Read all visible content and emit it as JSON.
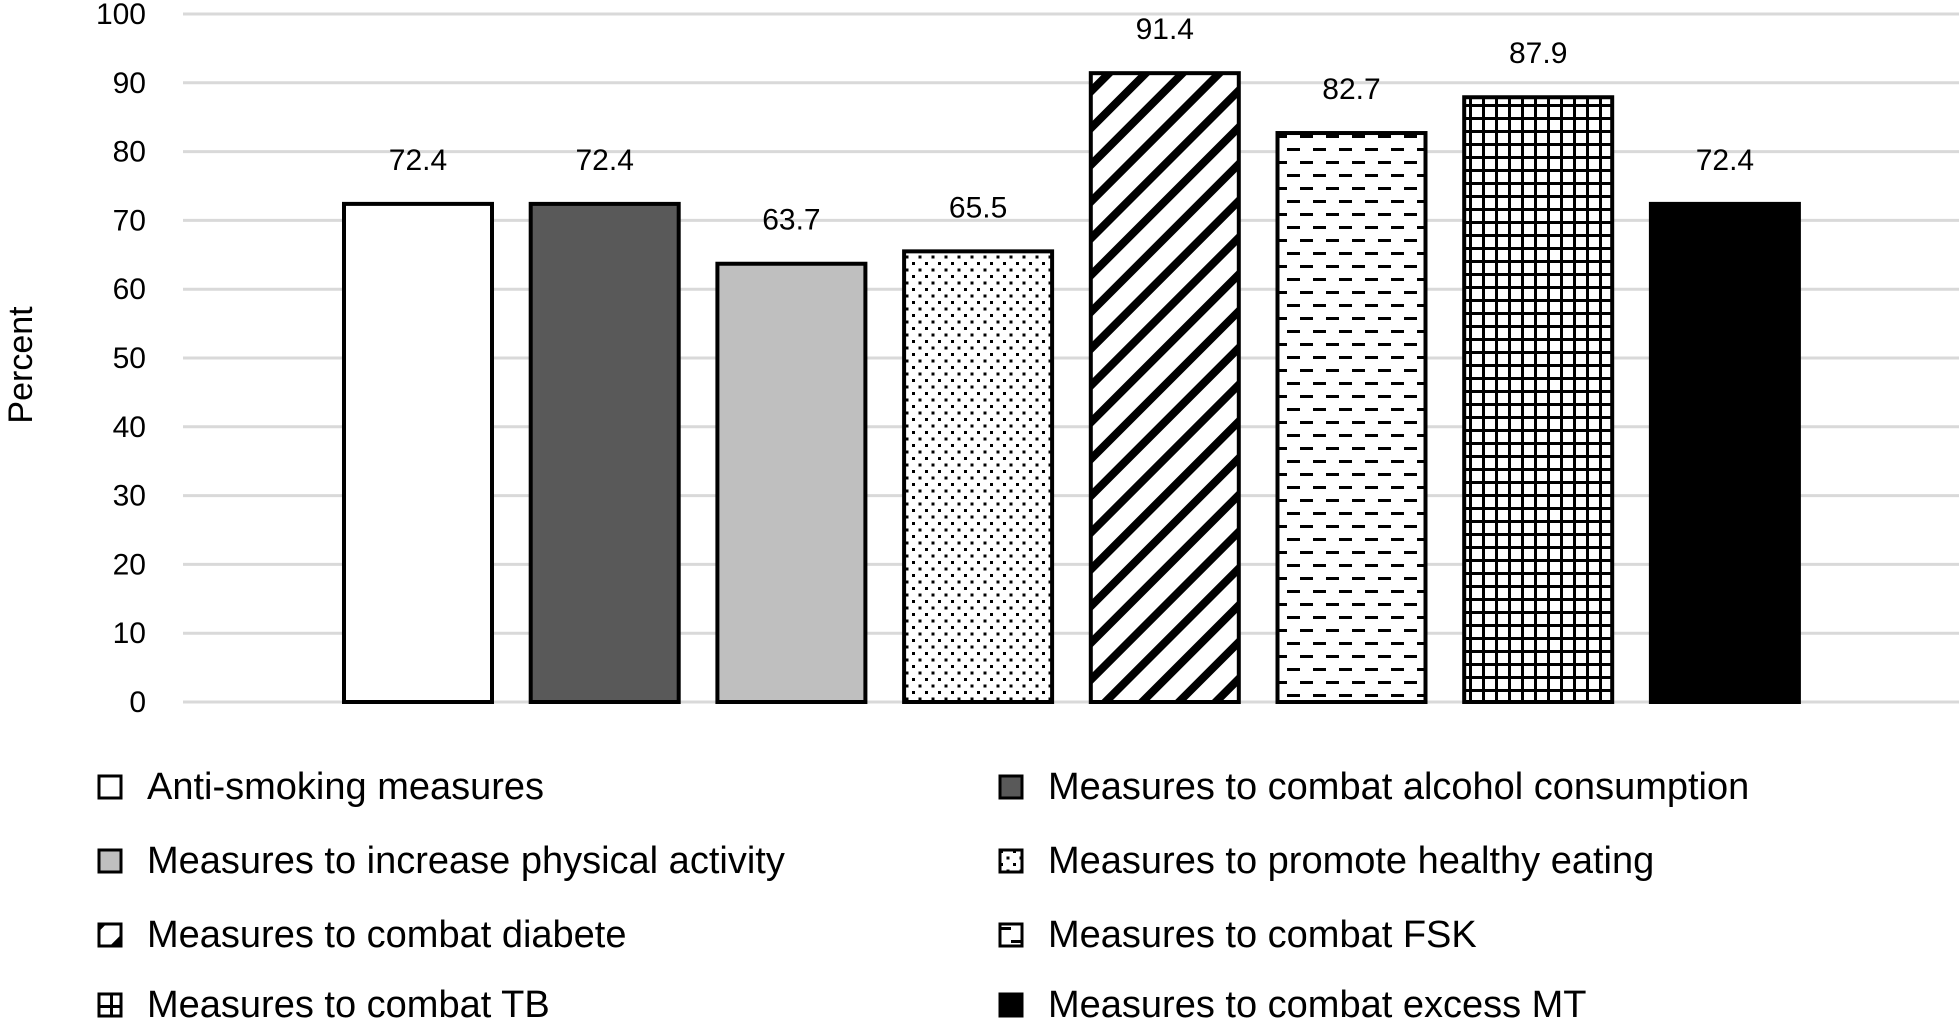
{
  "chart_data": {
    "type": "bar",
    "title": "",
    "xlabel": "",
    "ylabel": "Percent",
    "ylim": [
      0,
      100
    ],
    "yticks": [
      0,
      10,
      20,
      30,
      40,
      50,
      60,
      70,
      80,
      90,
      100
    ],
    "grid": true,
    "legend_position": "bottom",
    "categories": [
      "Anti-smoking measures",
      "Measures to combat alcohol consumption",
      "Measures to increase physical activity",
      "Measures to promote healthy eating",
      "Measures to combat diabete",
      "Measures to combat FSK",
      "Measures to combat TB",
      "Measures to combat excess MT"
    ],
    "values": [
      72.4,
      72.4,
      63.7,
      65.5,
      91.4,
      82.7,
      87.9,
      72.4
    ],
    "data_labels": [
      "72.4",
      "72.4",
      "63.7",
      "65.5",
      "91.4",
      "82.7",
      "87.9",
      "72.4"
    ],
    "fills": [
      "white",
      "dark-gray",
      "light-gray",
      "dots",
      "diagonal-stripes",
      "dashes",
      "grid",
      "black"
    ],
    "colors": {
      "dark_gray": "#595959",
      "light_gray": "#bfbfbf",
      "black": "#000000",
      "gridline": "#d9d9d9"
    }
  },
  "legend": [
    {
      "label": "Anti-smoking measures",
      "fill": "white"
    },
    {
      "label": "Measures to combat alcohol consumption",
      "fill": "dark-gray"
    },
    {
      "label": "Measures to increase physical activity",
      "fill": "light-gray"
    },
    {
      "label": "Measures to promote healthy eating",
      "fill": "dots"
    },
    {
      "label": "Measures to combat diabete",
      "fill": "diagonal-stripes"
    },
    {
      "label": "Measures to combat FSK",
      "fill": "dashes"
    },
    {
      "label": "Measures to combat TB",
      "fill": "grid"
    },
    {
      "label": "Measures to combat excess MT",
      "fill": "black"
    }
  ]
}
